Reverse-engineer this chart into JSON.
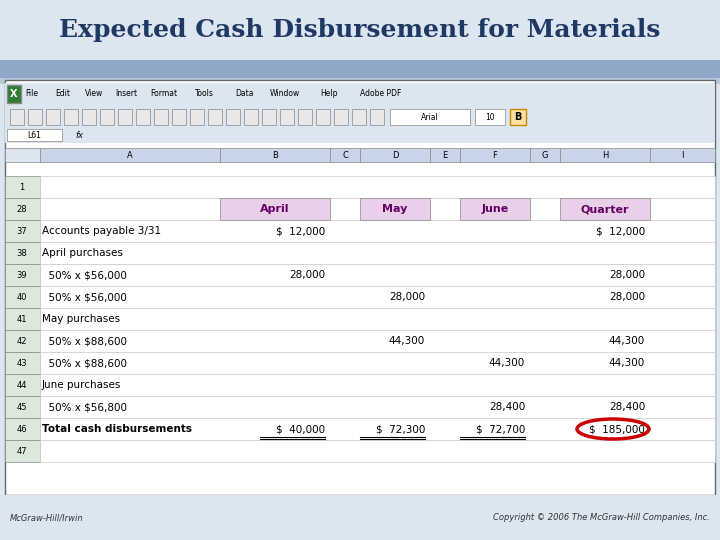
{
  "title": "Expected Cash Disbursement for Materials",
  "title_color": "#1f3864",
  "title_bg": "#dce6f1",
  "copyright_left": "McGraw-Hill/Irwin",
  "copyright_right": "Copyright © 2006 The McGraw-Hill Companies, Inc.",
  "header_bg": "#e8d5e8",
  "header_text_color": "#660066",
  "row_bg": "#f5f5e8",
  "total_row_bg": "#f5f5e8",
  "excel_toolbar_bg": "#c8d4e8",
  "excel_menu_bg": "#dce6f1",
  "col_header_bg": "#c8d4e8",
  "row_header_bg": "#dce8dc",
  "highlight_circle_color": "#cc0000",
  "rows": [
    {
      "row": "28",
      "label": "",
      "april": "April",
      "may": "May",
      "june": "June",
      "quarter": "Quarter",
      "is_header": true
    },
    {
      "row": "37",
      "label": "Accounts payable 3/31",
      "april": "$  12,000",
      "may": "",
      "june": "",
      "quarter": "$  12,000",
      "is_header": false
    },
    {
      "row": "38",
      "label": "April purchases",
      "april": "",
      "may": "",
      "june": "",
      "quarter": "",
      "is_header": false
    },
    {
      "row": "39",
      "label": "  50% x $56,000",
      "april": "28,000",
      "may": "",
      "june": "",
      "quarter": "28,000",
      "is_header": false
    },
    {
      "row": "40",
      "label": "  50% x $56,000",
      "april": "",
      "may": "28,000",
      "june": "",
      "quarter": "28,000",
      "is_header": false
    },
    {
      "row": "41",
      "label": "May purchases",
      "april": "",
      "may": "",
      "june": "",
      "quarter": "",
      "is_header": false
    },
    {
      "row": "42",
      "label": "  50% x $88,600",
      "april": "",
      "may": "44,300",
      "june": "",
      "quarter": "44,300",
      "is_header": false
    },
    {
      "row": "43",
      "label": "  50% x $88,600",
      "april": "",
      "may": "",
      "june": "44,300",
      "quarter": "44,300",
      "is_header": false
    },
    {
      "row": "44",
      "label": "June purchases",
      "april": "",
      "may": "",
      "june": "",
      "quarter": "",
      "is_header": false
    },
    {
      "row": "45",
      "label": "  50% x $56,800",
      "april": "",
      "may": "",
      "june": "28,400",
      "quarter": "28,400",
      "is_header": false
    },
    {
      "row": "46",
      "label": "Total cash disbursements",
      "april": "$  40,000",
      "may": "$  72,300",
      "june": "$  72,700",
      "quarter": "$  185,000",
      "is_header": false,
      "is_total": true
    },
    {
      "row": "47",
      "label": "",
      "april": "",
      "may": "",
      "june": "",
      "quarter": "",
      "is_header": false
    }
  ]
}
